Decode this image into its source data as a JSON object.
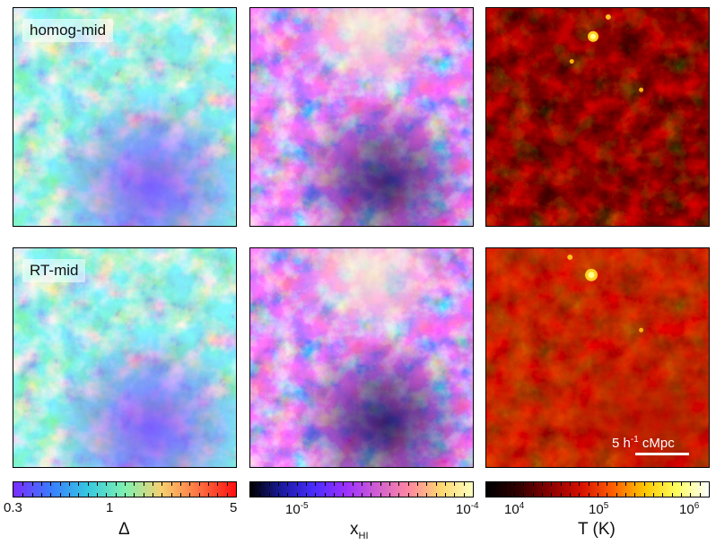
{
  "panels": {
    "row1_label": "homog-mid",
    "row2_label": "RT-mid"
  },
  "scalebar": {
    "prefix": "5 h",
    "exponent": "-1",
    "suffix": " cMpc"
  },
  "colorbars": {
    "density": {
      "ticks": [
        "0.3",
        "1",
        "5"
      ],
      "label": "Δ",
      "colors": [
        "#7a2cff",
        "#3a7cff",
        "#35c8e0",
        "#7ff0b0",
        "#f7d070",
        "#ff7040",
        "#ff1010"
      ]
    },
    "neutral_fraction": {
      "tick_base1": "10",
      "tick_exp1": "-5",
      "tick_base2": "10",
      "tick_exp2": "-4",
      "label_base": "x",
      "label_sub": "HI",
      "colors": [
        "#000000",
        "#1a1aa0",
        "#4a2cff",
        "#9b30ff",
        "#d060d0",
        "#ff88a0",
        "#ffd870",
        "#ffffc0"
      ]
    },
    "temperature": {
      "tick_base1": "10",
      "tick_exp1": "4",
      "tick_base2": "10",
      "tick_exp2": "5",
      "tick_base3": "10",
      "tick_exp3": "6",
      "label": "T (K)",
      "colors": [
        "#000000",
        "#300000",
        "#8a0000",
        "#d81000",
        "#ff6000",
        "#ffc800",
        "#ffff60",
        "#ffffff"
      ]
    }
  }
}
